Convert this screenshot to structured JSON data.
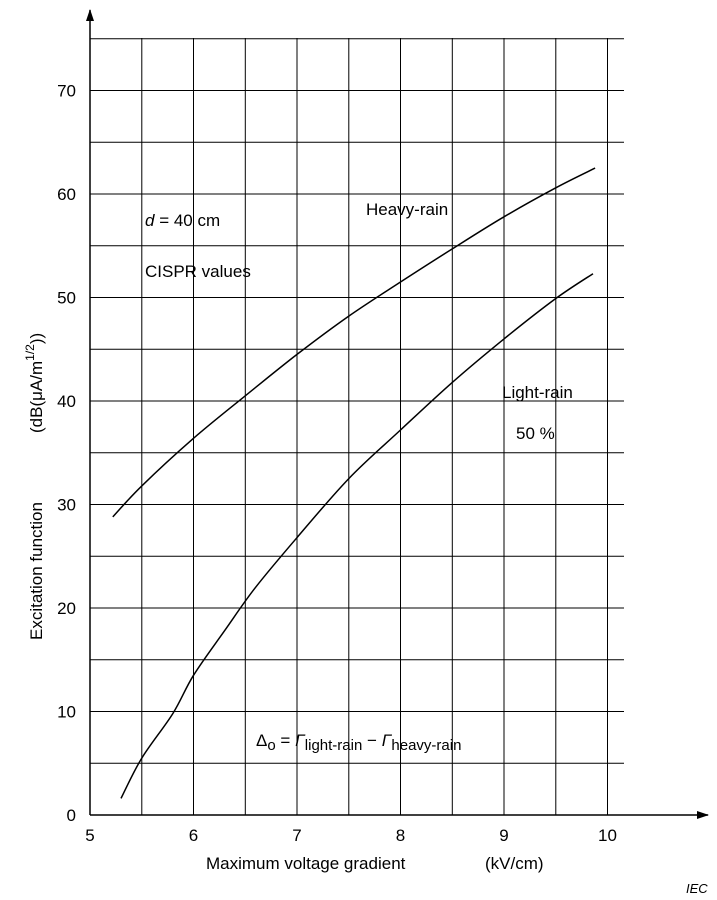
{
  "chart_data": {
    "type": "line",
    "title": "",
    "xlabel": "Maximum voltage gradient",
    "xunit": "(kV/cm)",
    "ylabel": "Excitation function",
    "yunit_prefix": "(dB(μA/m",
    "yunit_sup": "1/2",
    "yunit_suffix": "))",
    "xlim": [
      5,
      10
    ],
    "ylim": [
      0,
      70
    ],
    "x_ticks": [
      5,
      6,
      7,
      8,
      9,
      10
    ],
    "y_ticks": [
      0,
      10,
      20,
      30,
      40,
      50,
      60,
      70
    ],
    "x_tick_labels": [
      "5",
      "6",
      "7",
      "8",
      "9",
      "10"
    ],
    "y_tick_labels": [
      "0",
      "10",
      "20",
      "30",
      "40",
      "50",
      "60",
      "70"
    ],
    "grid": true,
    "x_grid_step": 0.5,
    "y_grid_step": 5,
    "series": [
      {
        "name": "Heavy-rain",
        "x": [
          5.22,
          5.5,
          6.0,
          6.5,
          7.0,
          7.5,
          8.0,
          8.5,
          9.0,
          9.5,
          9.88
        ],
        "values": [
          28.8,
          31.8,
          36.4,
          40.5,
          44.5,
          48.2,
          51.5,
          54.7,
          57.8,
          60.6,
          62.5
        ]
      },
      {
        "name": "Light-rain",
        "x": [
          5.3,
          5.5,
          5.8,
          6.0,
          6.3,
          6.6,
          7.0,
          7.5,
          8.0,
          8.5,
          9.0,
          9.5,
          9.86
        ],
        "values": [
          1.6,
          5.5,
          9.8,
          13.5,
          17.8,
          22.0,
          26.8,
          32.5,
          37.2,
          41.8,
          46.0,
          49.9,
          52.3
        ]
      }
    ],
    "annotations": {
      "gap_label": "d",
      "gap_value": " = 40 cm",
      "cispr": "CISPR values",
      "heavy_rain": "Heavy-rain",
      "light_rain": "Light-rain",
      "light_rain_pct": "50 %",
      "formula_delta": "Δ",
      "formula_delta_sub": "o",
      "formula_eq": " = ",
      "formula_gamma1": "Γ",
      "formula_sub1": "light-rain",
      "formula_minus": " − ",
      "formula_gamma2": "Γ",
      "formula_sub2": "heavy-rain"
    },
    "source_mark": "IEC"
  }
}
